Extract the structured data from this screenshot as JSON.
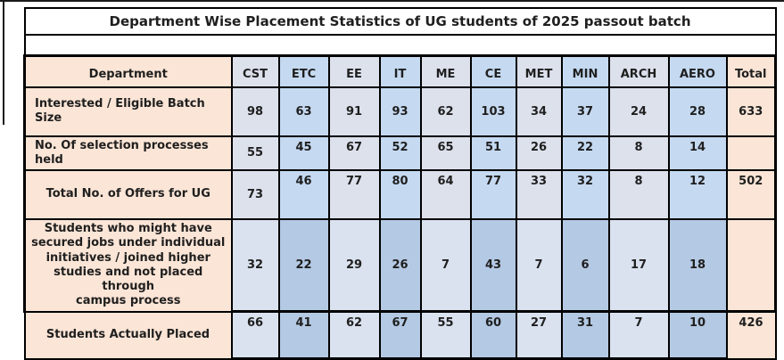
{
  "title": "Department Wise Placement Statistics of UG students of 2025 passout batch",
  "columns": [
    "Department",
    "CST",
    "ETC",
    "EE",
    "IT",
    "ME",
    "CE",
    "MET",
    "MIN",
    "ARCH",
    "AERO",
    "Total"
  ],
  "rows": [
    {
      "label": "Interested / Eligible Batch Size",
      "values": [
        "98",
        "63",
        "91",
        "93",
        "62",
        "103",
        "34",
        "37",
        "24",
        "28",
        "633"
      ]
    },
    {
      "label": "No. Of selection processes held",
      "values": [
        "55",
        "45",
        "67",
        "52",
        "65",
        "51",
        "26",
        "22",
        "8",
        "14",
        ""
      ]
    },
    {
      "label": "Total No. of Offers   for UG",
      "values": [
        "73",
        "46",
        "77",
        "80",
        "64",
        "77",
        "33",
        "32",
        "8",
        "12",
        "502"
      ]
    },
    {
      "label": "Students who might have\nsecured jobs under individual\ninitiatives / joined higher\nstudies and not placed through\ncampus process",
      "values": [
        "32",
        "22",
        "29",
        "26",
        "7",
        "43",
        "7",
        "6",
        "17",
        "18",
        ""
      ]
    },
    {
      "label": "Students Actually Placed",
      "values": [
        "66",
        "41",
        "62",
        "67",
        "55",
        "60",
        "27",
        "31",
        "7",
        "10",
        "426"
      ]
    }
  ],
  "colors": {
    "peach": "#FBE5D6",
    "gray_col": "#DCE1EC",
    "blue_col": "#C5D9F1",
    "gray_col_dark_rows": "#DAE2EF",
    "blue_col_dark_rows": "#B4C9E3",
    "title_bg": "#FFFFFF",
    "border": "#000000",
    "text": "#1F1F1F"
  }
}
